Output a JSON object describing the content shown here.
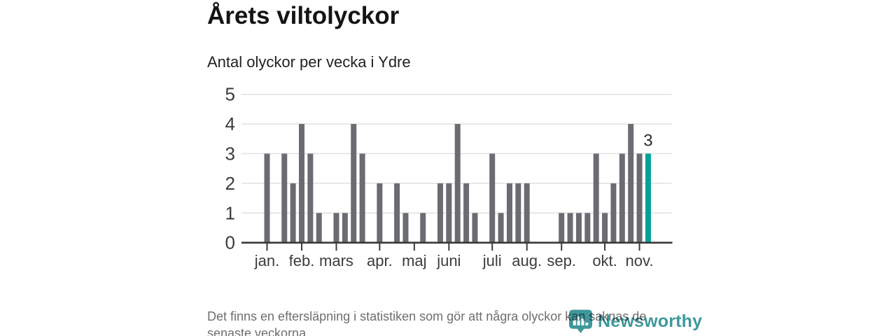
{
  "header": {
    "title": "Årets viltolyckor",
    "subtitle": "Antal olyckor per vecka i Ydre"
  },
  "chart_data": {
    "type": "bar",
    "title": "Årets viltolyckor",
    "subtitle": "Antal olyckor per vecka i Ydre",
    "x_unit": "week",
    "values": [
      3,
      0,
      3,
      2,
      4,
      3,
      1,
      0,
      1,
      1,
      4,
      3,
      0,
      2,
      0,
      2,
      1,
      0,
      1,
      0,
      2,
      2,
      4,
      2,
      1,
      0,
      3,
      1,
      2,
      2,
      2,
      0,
      0,
      0,
      1,
      1,
      1,
      1,
      3,
      1,
      2,
      3,
      4,
      3,
      3
    ],
    "highlight_last": true,
    "last_value_label": "3",
    "y_ticks": [
      0,
      1,
      2,
      3,
      4,
      5
    ],
    "ylim": [
      0,
      5
    ],
    "grid": true,
    "legend": "none",
    "month_ticks": {
      "labels": [
        "jan.",
        "feb.",
        "mars",
        "apr.",
        "maj",
        "juni",
        "juli",
        "aug.",
        "sep.",
        "okt.",
        "nov."
      ],
      "week_indices": [
        0,
        4,
        8,
        13,
        17,
        21,
        26,
        30,
        34,
        39,
        43
      ]
    },
    "colors": {
      "bar": "#6b6b72",
      "highlight": "#00a39c",
      "gridline": "#e1e1e1",
      "axis": "#3a3a3a",
      "axis_text": "#3c3c3c",
      "data_label": "#2d2d2d"
    }
  },
  "footer": {
    "lines": [
      "Det finns en eftersläpning i statistiken som gör att några olyckor kan saknas de",
      "senaste veckorna."
    ]
  },
  "logo": {
    "text": "Newsworthy",
    "color": "#3f989b",
    "icon": "newsworthy-pin-barchart-icon"
  }
}
